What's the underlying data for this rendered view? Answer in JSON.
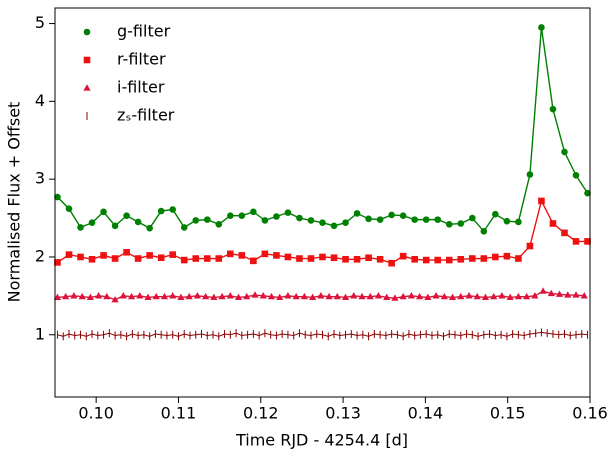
{
  "chart_data": {
    "type": "line",
    "x_label": "Time RJD - 4254.4 [d]",
    "y_label": "Normalised Flux + Offset",
    "xlim": [
      0.095,
      0.16
    ],
    "xticks": [
      {
        "value": 0.1,
        "label": "0.10"
      },
      0.11,
      0.12,
      0.13,
      0.14,
      0.15,
      0.16
    ],
    "ylim": [
      0.2,
      5.2
    ],
    "yticks": [
      1,
      2,
      3,
      4,
      5
    ],
    "legend": "upper left",
    "series": [
      {
        "name": "g-filter",
        "color": "#008000",
        "marker": "o",
        "x": [
          0.0953,
          0.0967,
          0.0981,
          0.0995,
          0.1009,
          0.1023,
          0.1037,
          0.1051,
          0.1065,
          0.1079,
          0.1093,
          0.1107,
          0.1121,
          0.1135,
          0.1149,
          0.1163,
          0.1177,
          0.1191,
          0.1205,
          0.1219,
          0.1233,
          0.1247,
          0.1261,
          0.1275,
          0.1289,
          0.1303,
          0.1317,
          0.1331,
          0.1345,
          0.1359,
          0.1373,
          0.1387,
          0.1401,
          0.1415,
          0.1429,
          0.1443,
          0.1457,
          0.1471,
          0.1485,
          0.1499,
          0.1513,
          0.1527,
          0.1541,
          0.1555,
          0.1569,
          0.1583,
          0.1597
        ],
        "values": [
          2.77,
          2.62,
          2.38,
          2.44,
          2.58,
          2.4,
          2.53,
          2.45,
          2.37,
          2.59,
          2.61,
          2.38,
          2.47,
          2.48,
          2.42,
          2.53,
          2.53,
          2.58,
          2.47,
          2.52,
          2.57,
          2.5,
          2.47,
          2.44,
          2.4,
          2.44,
          2.56,
          2.49,
          2.48,
          2.54,
          2.53,
          2.48,
          2.48,
          2.48,
          2.42,
          2.43,
          2.5,
          2.33,
          2.55,
          2.46,
          2.45,
          3.06,
          4.95,
          3.9,
          3.35,
          3.05,
          2.82
        ]
      },
      {
        "name": "r-filter",
        "color": "#ee1111",
        "marker": "s",
        "x": [
          0.0953,
          0.0967,
          0.0981,
          0.0995,
          0.1009,
          0.1023,
          0.1037,
          0.1051,
          0.1065,
          0.1079,
          0.1093,
          0.1107,
          0.1121,
          0.1135,
          0.1149,
          0.1163,
          0.1177,
          0.1191,
          0.1205,
          0.1219,
          0.1233,
          0.1247,
          0.1261,
          0.1275,
          0.1289,
          0.1303,
          0.1317,
          0.1331,
          0.1345,
          0.1359,
          0.1373,
          0.1387,
          0.1401,
          0.1415,
          0.1429,
          0.1443,
          0.1457,
          0.1471,
          0.1485,
          0.1499,
          0.1513,
          0.1527,
          0.1541,
          0.1555,
          0.1569,
          0.1583,
          0.1597
        ],
        "values": [
          1.93,
          2.03,
          2.0,
          1.97,
          2.02,
          1.98,
          2.06,
          1.98,
          2.02,
          1.99,
          2.03,
          1.96,
          1.98,
          1.98,
          1.98,
          2.04,
          2.02,
          1.95,
          2.04,
          2.02,
          2.0,
          1.98,
          1.98,
          2.0,
          1.99,
          1.97,
          1.97,
          1.99,
          1.97,
          1.92,
          2.01,
          1.97,
          1.96,
          1.96,
          1.96,
          1.97,
          1.98,
          1.98,
          2.0,
          2.01,
          1.98,
          2.14,
          2.72,
          2.43,
          2.31,
          2.2,
          2.2
        ]
      },
      {
        "name": "i-filter",
        "color": "#dc143c",
        "marker": "^",
        "x": [
          0.0953,
          0.0963,
          0.0973,
          0.0983,
          0.0993,
          0.1003,
          0.1013,
          0.1023,
          0.1033,
          0.1043,
          0.1053,
          0.1063,
          0.1073,
          0.1083,
          0.1093,
          0.1103,
          0.1113,
          0.1123,
          0.1133,
          0.1143,
          0.1153,
          0.1163,
          0.1173,
          0.1183,
          0.1193,
          0.1203,
          0.1213,
          0.1223,
          0.1233,
          0.1243,
          0.1253,
          0.1263,
          0.1273,
          0.1283,
          0.1293,
          0.1303,
          0.1313,
          0.1323,
          0.1333,
          0.1343,
          0.1353,
          0.1363,
          0.1373,
          0.1383,
          0.1393,
          0.1403,
          0.1413,
          0.1423,
          0.1433,
          0.1443,
          0.1453,
          0.1463,
          0.1473,
          0.1483,
          0.1493,
          0.1503,
          0.1513,
          0.1523,
          0.1533,
          0.1543,
          0.1553,
          0.1563,
          0.1573,
          0.1583,
          0.1593
        ],
        "values": [
          1.48,
          1.49,
          1.5,
          1.49,
          1.48,
          1.5,
          1.49,
          1.45,
          1.5,
          1.49,
          1.5,
          1.48,
          1.49,
          1.49,
          1.5,
          1.48,
          1.49,
          1.5,
          1.49,
          1.48,
          1.49,
          1.5,
          1.48,
          1.49,
          1.51,
          1.5,
          1.49,
          1.48,
          1.5,
          1.49,
          1.49,
          1.48,
          1.5,
          1.49,
          1.49,
          1.48,
          1.5,
          1.49,
          1.49,
          1.5,
          1.48,
          1.47,
          1.49,
          1.5,
          1.49,
          1.48,
          1.5,
          1.49,
          1.48,
          1.49,
          1.5,
          1.49,
          1.48,
          1.49,
          1.5,
          1.48,
          1.49,
          1.49,
          1.5,
          1.56,
          1.53,
          1.52,
          1.51,
          1.51,
          1.5
        ]
      },
      {
        "name": "zₛ-filter",
        "color": "#8b0000",
        "marker": "|",
        "x": [
          0.0953,
          0.096,
          0.0967,
          0.0974,
          0.0981,
          0.0988,
          0.0995,
          0.1002,
          0.1009,
          0.1016,
          0.1023,
          0.103,
          0.1037,
          0.1044,
          0.1051,
          0.1058,
          0.1065,
          0.1072,
          0.1079,
          0.1086,
          0.1093,
          0.11,
          0.1107,
          0.1114,
          0.1121,
          0.1128,
          0.1135,
          0.1142,
          0.1149,
          0.1156,
          0.1163,
          0.117,
          0.1177,
          0.1184,
          0.1191,
          0.1198,
          0.1205,
          0.1212,
          0.1219,
          0.1226,
          0.1233,
          0.124,
          0.1247,
          0.1254,
          0.1261,
          0.1268,
          0.1275,
          0.1282,
          0.1289,
          0.1296,
          0.1303,
          0.131,
          0.1317,
          0.1324,
          0.1331,
          0.1338,
          0.1345,
          0.1352,
          0.1359,
          0.1366,
          0.1373,
          0.138,
          0.1387,
          0.1394,
          0.1401,
          0.1408,
          0.1415,
          0.1422,
          0.1429,
          0.1436,
          0.1443,
          0.145,
          0.1457,
          0.1464,
          0.1471,
          0.1478,
          0.1485,
          0.1492,
          0.1499,
          0.1506,
          0.1513,
          0.152,
          0.1527,
          0.1534,
          0.1541,
          0.1548,
          0.1555,
          0.1562,
          0.1569,
          0.1576,
          0.1583,
          0.159,
          0.1597
        ],
        "values": [
          1.0,
          0.98,
          1.01,
          0.99,
          1.0,
          0.98,
          1.01,
          0.99,
          1.0,
          1.02,
          0.99,
          1.0,
          0.98,
          1.01,
          0.99,
          1.0,
          0.98,
          1.01,
          1.0,
          0.99,
          1.0,
          0.98,
          1.01,
          0.99,
          1.0,
          1.01,
          0.99,
          1.0,
          0.98,
          1.01,
          1.0,
          1.02,
          0.99,
          1.0,
          1.01,
          0.99,
          1.02,
          1.0,
          0.99,
          1.01,
          1.0,
          0.99,
          1.02,
          1.0,
          0.99,
          1.01,
          1.0,
          0.98,
          1.01,
          0.99,
          1.0,
          1.01,
          0.99,
          1.0,
          0.98,
          1.01,
          1.0,
          0.99,
          1.01,
          1.0,
          0.98,
          1.01,
          0.99,
          1.0,
          1.01,
          0.99,
          1.0,
          0.98,
          1.01,
          1.0,
          0.99,
          1.01,
          1.0,
          0.98,
          1.0,
          1.01,
          0.99,
          1.0,
          0.98,
          1.01,
          1.0,
          0.99,
          1.01,
          1.02,
          1.03,
          1.02,
          1.01,
          1.0,
          1.01,
          0.99,
          1.0,
          1.01,
          1.0
        ]
      }
    ]
  }
}
